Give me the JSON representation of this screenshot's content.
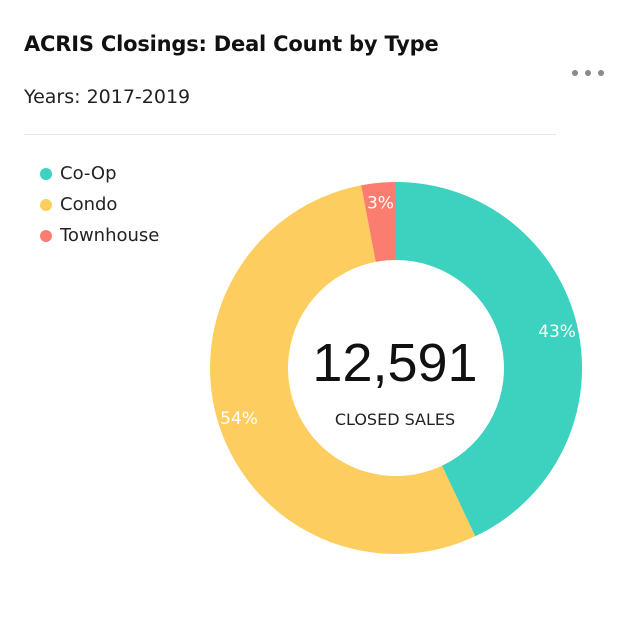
{
  "header": {
    "title": "ACRIS Closings: Deal Count by Type",
    "subtitle": "Years: 2017-2019",
    "more_menu": "more-horizontal-icon"
  },
  "center": {
    "value": "12,591",
    "label": "CLOSED SALES"
  },
  "chart_data": {
    "type": "pie",
    "variant": "donut",
    "categories": [
      "Co-Op",
      "Condo",
      "Townhouse"
    ],
    "values": [
      43,
      54,
      3
    ],
    "labels": [
      "43%",
      "54%",
      "3%"
    ],
    "colors": [
      "#3dd1bf",
      "#fdcd60",
      "#fa7d6f"
    ],
    "legend_position": "top-left"
  }
}
